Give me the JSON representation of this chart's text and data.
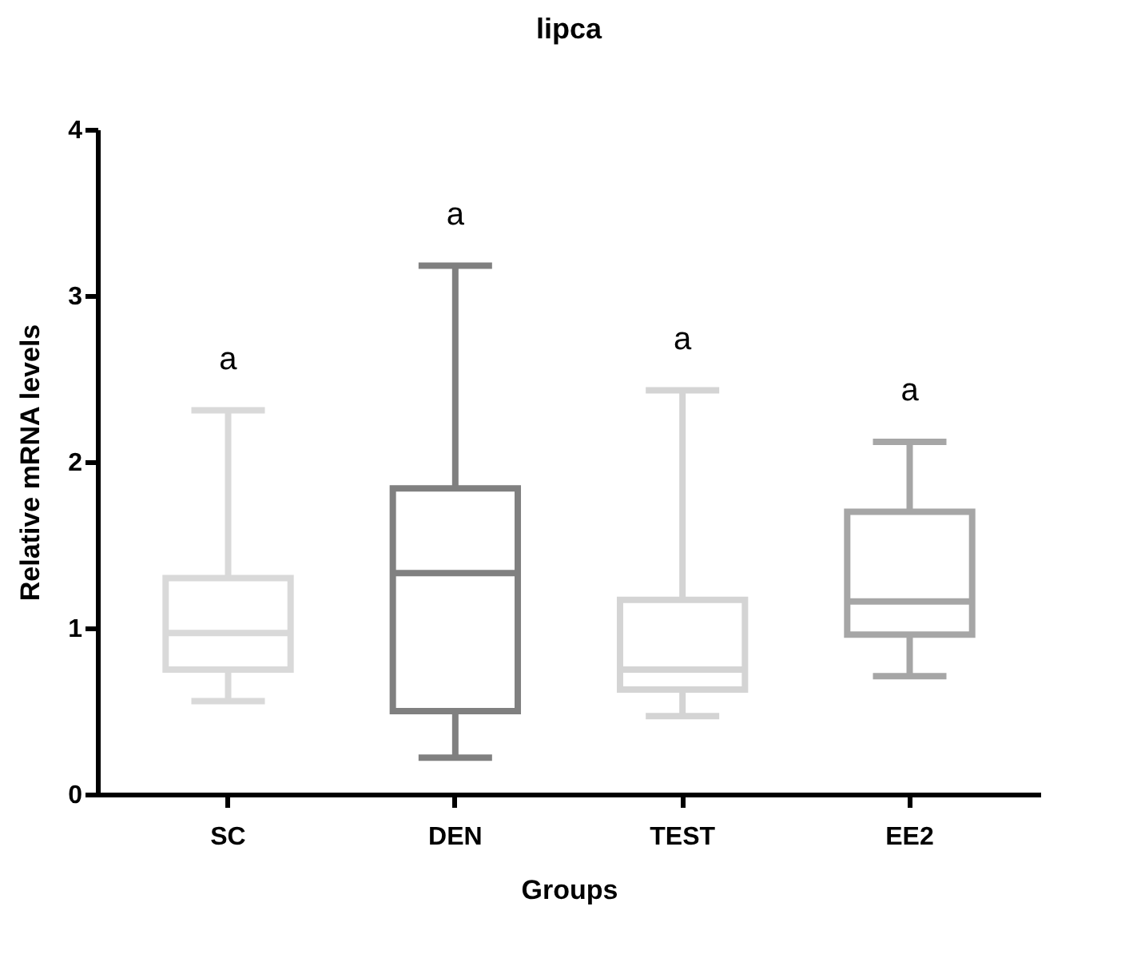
{
  "chart_data": {
    "type": "box",
    "title": "lipca",
    "xlabel": "Groups",
    "ylabel": "Relative mRNA levels",
    "categories": [
      "SC",
      "DEN",
      "TEST",
      "EE2"
    ],
    "colors": [
      "#d9d9d9",
      "#808080",
      "#d4d4d4",
      "#a6a6a6"
    ],
    "boxes": [
      {
        "low": 0.56,
        "q1": 0.75,
        "median": 0.97,
        "q3": 1.3,
        "high": 2.31
      },
      {
        "low": 0.22,
        "q1": 0.5,
        "median": 1.33,
        "q3": 1.84,
        "high": 3.18
      },
      {
        "low": 0.47,
        "q1": 0.63,
        "median": 0.75,
        "q3": 1.17,
        "high": 2.43
      },
      {
        "low": 0.71,
        "q1": 0.96,
        "median": 1.16,
        "q3": 1.7,
        "high": 2.12
      }
    ],
    "annotations": [
      "a",
      "a",
      "a",
      "a"
    ],
    "ylim": [
      0,
      4
    ],
    "yticks": [
      0,
      1,
      2,
      3,
      4
    ],
    "grid": false,
    "legend": false
  }
}
